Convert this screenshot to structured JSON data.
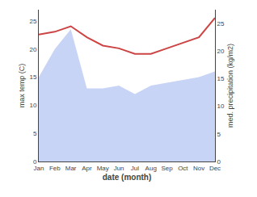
{
  "chart_data": {
    "type": "area",
    "categories": [
      "Jan",
      "Feb",
      "Mar",
      "Apr",
      "May",
      "Jun",
      "Jul",
      "Aug",
      "Sep",
      "Oct",
      "Nov",
      "Dec"
    ],
    "series": [
      {
        "type": "area",
        "color": "#c8d4f5",
        "values": [
          15.0,
          20.0,
          23.5,
          13.0,
          13.0,
          13.5,
          12.0,
          13.5,
          14.0,
          14.5,
          15.0,
          16.0
        ]
      },
      {
        "type": "line",
        "color": "#cc4444",
        "axis": "y2",
        "values": [
          23.0,
          23.5,
          24.5,
          22.5,
          21.0,
          20.5,
          19.5,
          19.5,
          20.5,
          21.5,
          22.5,
          26.0
        ]
      }
    ],
    "xlabel": "date (month)",
    "ylabel": "max temp (C)",
    "y2label": "med. precipitation (kg/m2)",
    "ylim": [
      0,
      27
    ],
    "yticks": [
      0,
      5,
      10,
      15,
      20,
      25
    ],
    "y2lim": [
      0,
      27.5
    ],
    "y2ticks": [
      0,
      5,
      10,
      15,
      20,
      25
    ],
    "grid": false
  }
}
